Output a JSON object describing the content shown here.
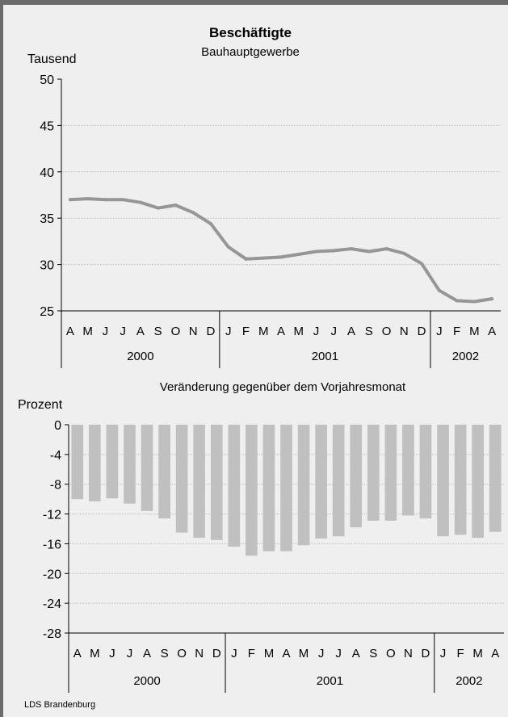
{
  "source": "LDS Brandenburg",
  "chart_data": [
    {
      "type": "line",
      "title": "Beschäftigte",
      "subtitle": "Bauhauptgewerbe",
      "ylabel": "Tausend",
      "ylim": [
        25,
        50
      ],
      "yticks": [
        "50",
        "45",
        "40",
        "35",
        "30",
        "25"
      ],
      "categories": [
        "A",
        "M",
        "J",
        "J",
        "A",
        "S",
        "O",
        "N",
        "D",
        "J",
        "F",
        "M",
        "A",
        "M",
        "J",
        "J",
        "A",
        "S",
        "O",
        "N",
        "D",
        "J",
        "F",
        "M",
        "A"
      ],
      "years": [
        {
          "label": "2000",
          "count": 9
        },
        {
          "label": "2001",
          "count": 12
        },
        {
          "label": "2002",
          "count": 4
        }
      ],
      "grid": true,
      "line_color": "#969696",
      "values": [
        37.0,
        37.1,
        37.0,
        37.0,
        36.7,
        36.1,
        36.4,
        35.6,
        34.4,
        31.9,
        30.6,
        30.7,
        30.8,
        31.1,
        31.4,
        31.5,
        31.7,
        31.4,
        31.7,
        31.2,
        30.1,
        27.2,
        26.1,
        26.0,
        26.3
      ]
    },
    {
      "type": "bar",
      "title": "Veränderung gegenüber dem Vorjahresmonat",
      "ylabel": "Prozent",
      "ylim": [
        -28,
        0
      ],
      "yticks": [
        "0",
        "-4",
        "-8",
        "-12",
        "-16",
        "-20",
        "-24",
        "-28"
      ],
      "categories": [
        "A",
        "M",
        "J",
        "J",
        "A",
        "S",
        "O",
        "N",
        "D",
        "J",
        "F",
        "M",
        "A",
        "M",
        "J",
        "J",
        "A",
        "S",
        "O",
        "N",
        "D",
        "J",
        "F",
        "M",
        "A"
      ],
      "years": [
        {
          "label": "2000",
          "count": 9
        },
        {
          "label": "2001",
          "count": 12
        },
        {
          "label": "2002",
          "count": 4
        }
      ],
      "grid": true,
      "bar_color": "#c0c0c0",
      "values": [
        -10.0,
        -10.3,
        -9.9,
        -10.6,
        -11.6,
        -12.6,
        -14.5,
        -15.2,
        -15.5,
        -16.4,
        -17.6,
        -17.0,
        -17.0,
        -16.2,
        -15.3,
        -15.0,
        -13.8,
        -12.9,
        -12.9,
        -12.2,
        -12.6,
        -15.0,
        -14.8,
        -15.2,
        -14.4
      ]
    }
  ]
}
